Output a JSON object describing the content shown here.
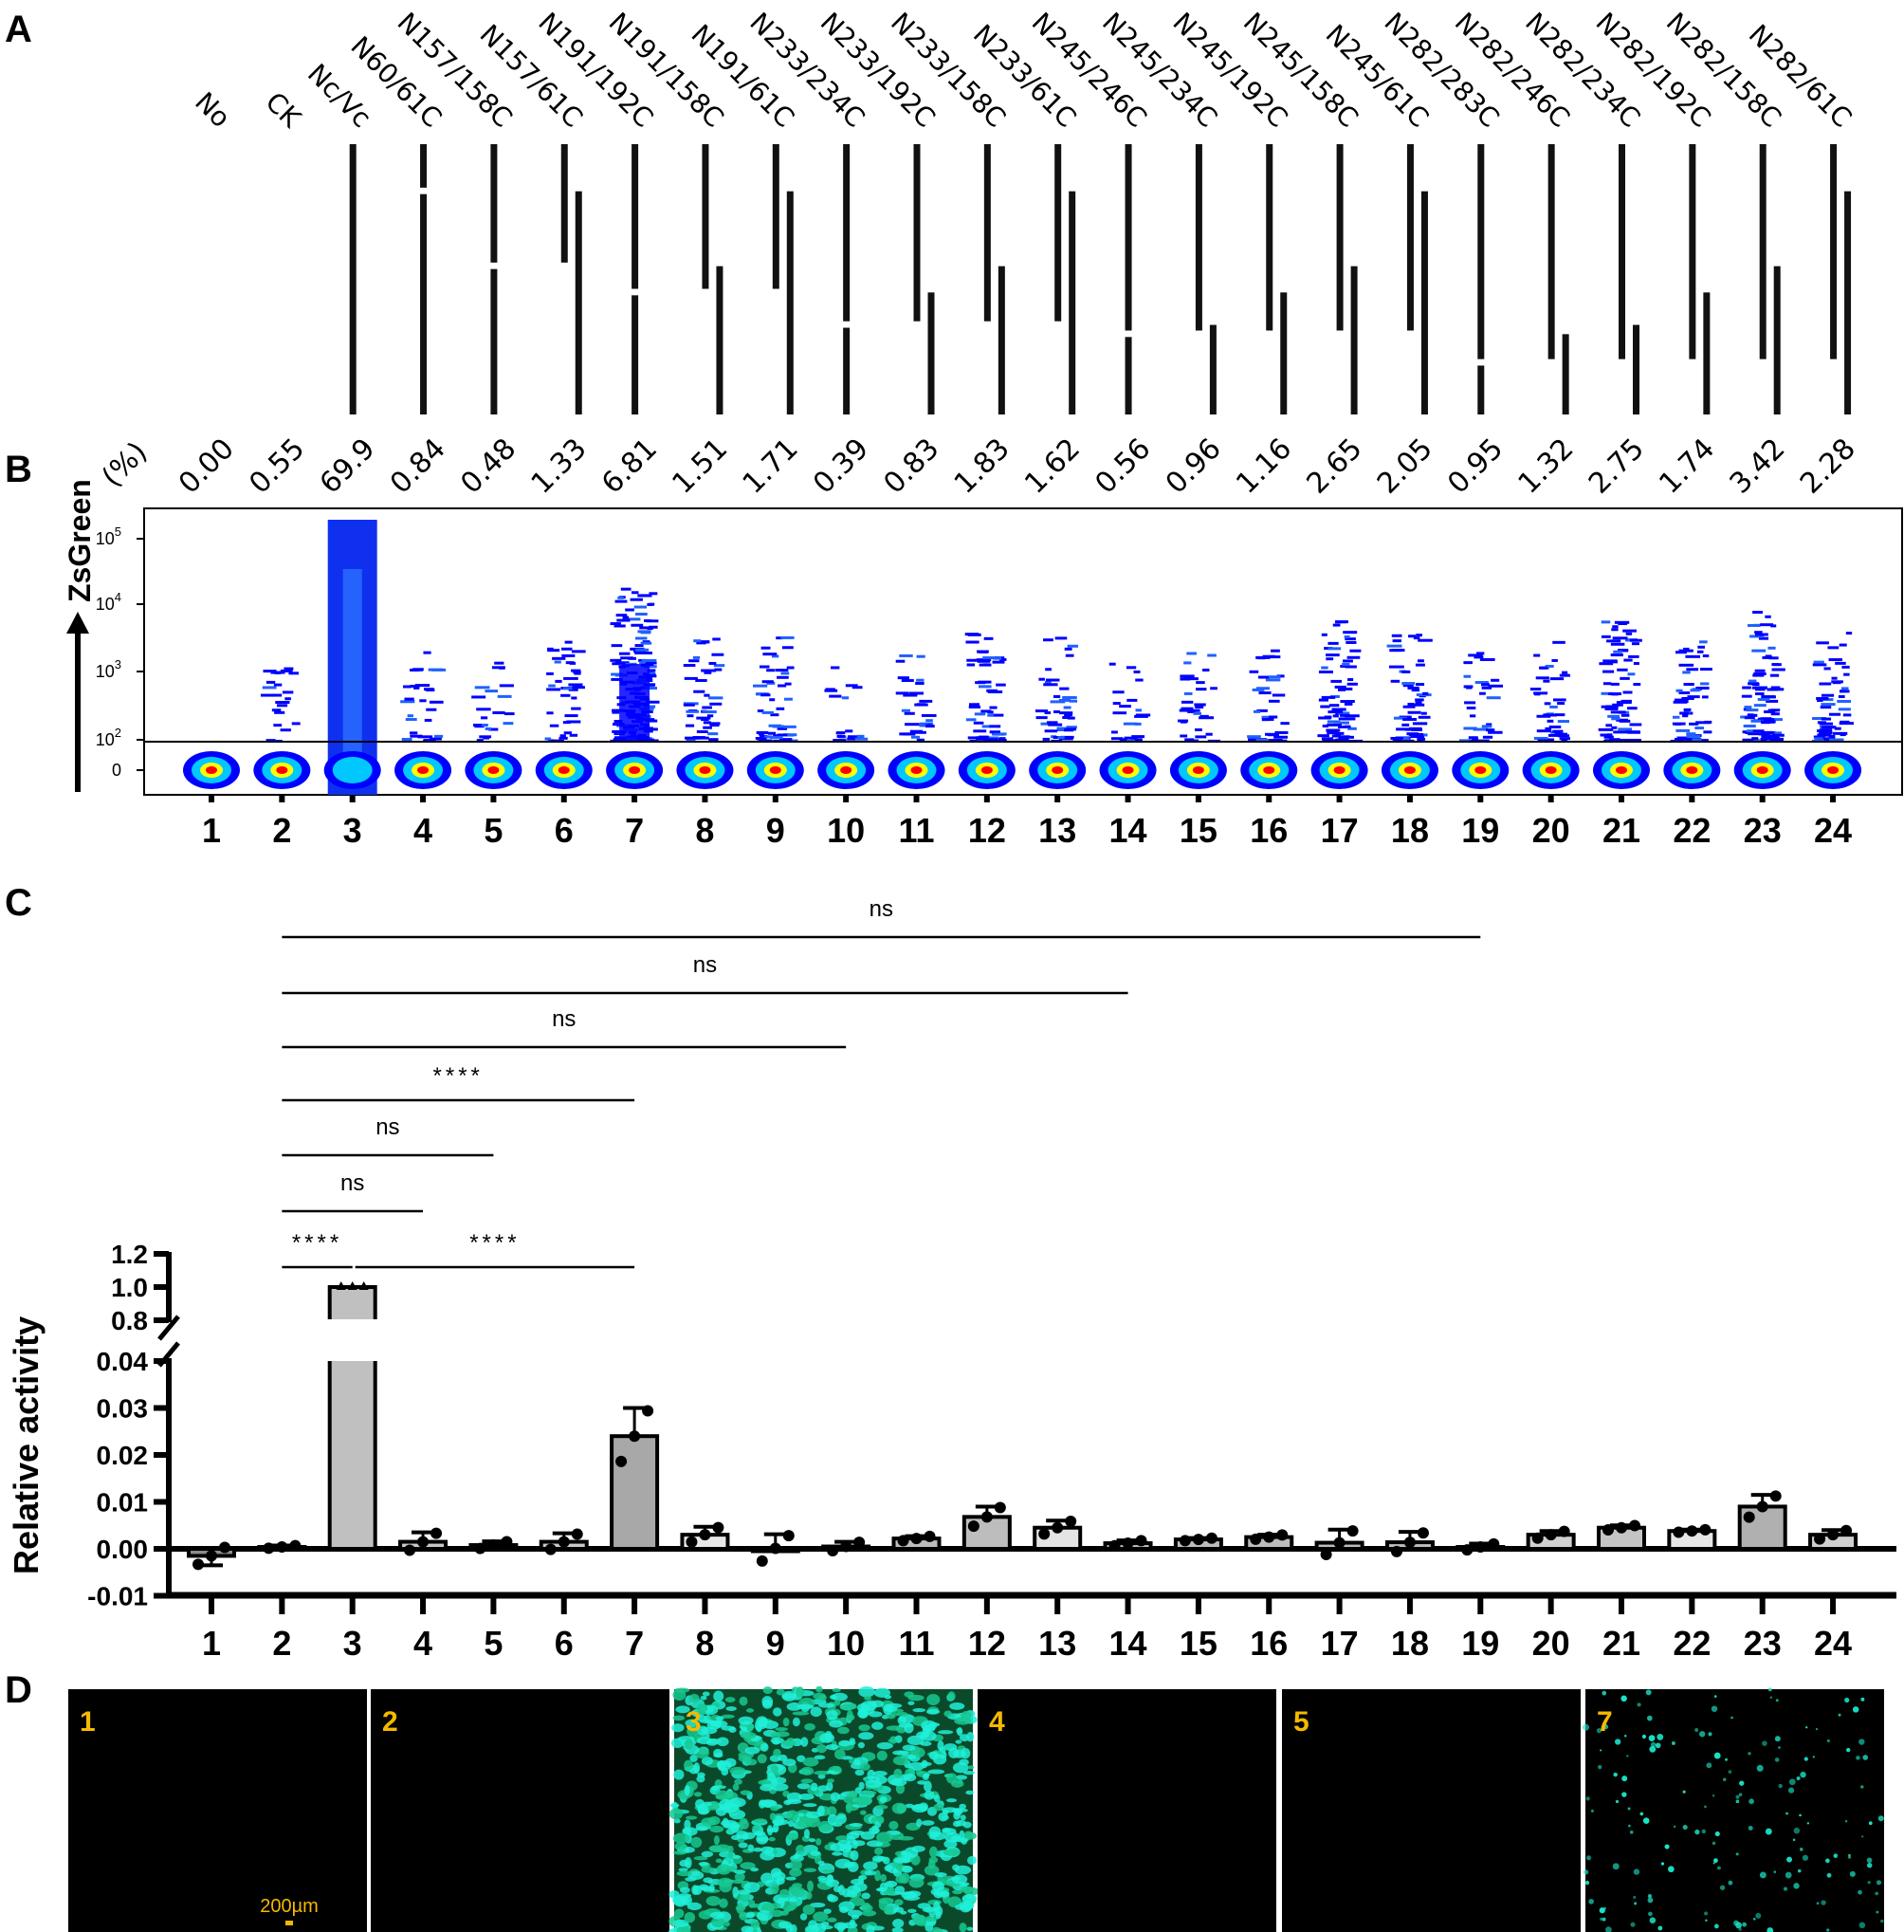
{
  "panels": {
    "a": "A",
    "b": "B",
    "c": "C",
    "d": "D"
  },
  "chart_data": [
    {
      "type": "diagram",
      "panel": "A",
      "full_length": 350,
      "constructs": [
        "No",
        "CK",
        "Nc/Vc",
        "N60/61C",
        "N157/158C",
        "N157/61C",
        "N191/192C",
        "N191/158C",
        "N191/61C",
        "N233/234C",
        "N233/192C",
        "N233/158C",
        "N233/61C",
        "N245/246C",
        "N245/234C",
        "N245/192C",
        "N245/158C",
        "N245/61C",
        "N282/283C",
        "N282/246C",
        "N282/234C",
        "N282/192C",
        "N282/158C",
        "N282/61C"
      ]
    },
    {
      "type": "scatter",
      "panel": "B",
      "ylabel": "ZsGreen",
      "percent_label": "(%)",
      "categories": [
        "1",
        "2",
        "3",
        "4",
        "5",
        "6",
        "7",
        "8",
        "9",
        "10",
        "11",
        "12",
        "13",
        "14",
        "15",
        "16",
        "17",
        "18",
        "19",
        "20",
        "21",
        "22",
        "23",
        "24"
      ],
      "percentages": [
        "0.00",
        "0.55",
        "69.9",
        "0.84",
        "0.48",
        "1.33",
        "6.81",
        "1.51",
        "1.71",
        "0.39",
        "0.83",
        "1.83",
        "1.62",
        "0.56",
        "0.96",
        "1.16",
        "2.65",
        "2.05",
        "0.95",
        "1.32",
        "2.75",
        "1.74",
        "3.42",
        "2.28"
      ],
      "yticks": [
        {
          "base": "0",
          "exp": ""
        },
        {
          "base": "10",
          "exp": "2"
        },
        {
          "base": "10",
          "exp": "3"
        },
        {
          "base": "10",
          "exp": "4"
        },
        {
          "base": "10",
          "exp": "5"
        }
      ],
      "gate_threshold": 80,
      "colors": {
        "low": "#0000ff",
        "mid": "#00c8ff",
        "high": "#ffff00",
        "peak": "#ff0000"
      }
    },
    {
      "type": "bar",
      "panel": "C",
      "ylabel": "Relative activity",
      "categories": [
        "1",
        "2",
        "3",
        "4",
        "5",
        "6",
        "7",
        "8",
        "9",
        "10",
        "11",
        "12",
        "13",
        "14",
        "15",
        "16",
        "17",
        "18",
        "19",
        "20",
        "21",
        "22",
        "23",
        "24"
      ],
      "values": [
        -0.0015,
        0.0004,
        1.0,
        0.0015,
        0.0008,
        0.0015,
        0.024,
        0.003,
        0.0001,
        0.0005,
        0.0022,
        0.0068,
        0.0045,
        0.0012,
        0.002,
        0.0025,
        0.0013,
        0.0014,
        0.0004,
        0.003,
        0.0045,
        0.0038,
        0.009,
        0.003
      ],
      "errors": [
        0.002,
        0.0003,
        0.003,
        0.002,
        0.0008,
        0.0018,
        0.006,
        0.0017,
        0.003,
        0.001,
        0.0005,
        0.0022,
        0.0015,
        0.0006,
        0.0003,
        0.0005,
        0.0028,
        0.0022,
        0.0007,
        0.0008,
        0.0005,
        0.0003,
        0.0025,
        0.001
      ],
      "fills": [
        "#8c8c8c",
        "#bdbdbd",
        "#c0c0c0",
        "#c8c8c8",
        "#d0d0d0",
        "#c8c8c8",
        "#a8a8a8",
        "#e8e8e8",
        "#e0e0e0",
        "#e8e8e8",
        "#bdbdbd",
        "#bdbdbd",
        "#e4e4e4",
        "#bdbdbd",
        "#bdbdbd",
        "#bdbdbd",
        "#bdbdbd",
        "#bdbdbd",
        "#bdbdbd",
        "#d0d0d0",
        "#c4c4c4",
        "#e6e6e6",
        "#b0b0b0",
        "#d0d0d0"
      ],
      "yticks_lower": [
        "-0.01",
        "0.00",
        "0.01",
        "0.02",
        "0.03",
        "0.04"
      ],
      "yticks_upper": [
        "0.8",
        "1.0",
        "1.2"
      ],
      "axis_break": [
        0.04,
        0.8
      ],
      "comparisons": [
        {
          "from": 2,
          "to": 3,
          "label": "****"
        },
        {
          "from": 3,
          "to": 7,
          "label": "****"
        },
        {
          "from": 2,
          "to": 4,
          "label": "ns"
        },
        {
          "from": 2,
          "to": 5,
          "label": "ns"
        },
        {
          "from": 2,
          "to": 7,
          "label": "****"
        },
        {
          "from": 2,
          "to": 10,
          "label": "ns"
        },
        {
          "from": 2,
          "to": 14,
          "label": "ns"
        },
        {
          "from": 2,
          "to": 19,
          "label": "ns"
        }
      ]
    },
    {
      "type": "image-grid",
      "panel": "D",
      "images": [
        {
          "label": "1",
          "signal": "none"
        },
        {
          "label": "2",
          "signal": "none"
        },
        {
          "label": "3",
          "signal": "dense"
        },
        {
          "label": "4",
          "signal": "none"
        },
        {
          "label": "5",
          "signal": "none"
        },
        {
          "label": "7",
          "signal": "sparse"
        }
      ],
      "scale_bar": "200µm",
      "colors": {
        "label": "#f5b800",
        "fluorescence": "#19e6c8",
        "background": "#000000"
      }
    }
  ]
}
